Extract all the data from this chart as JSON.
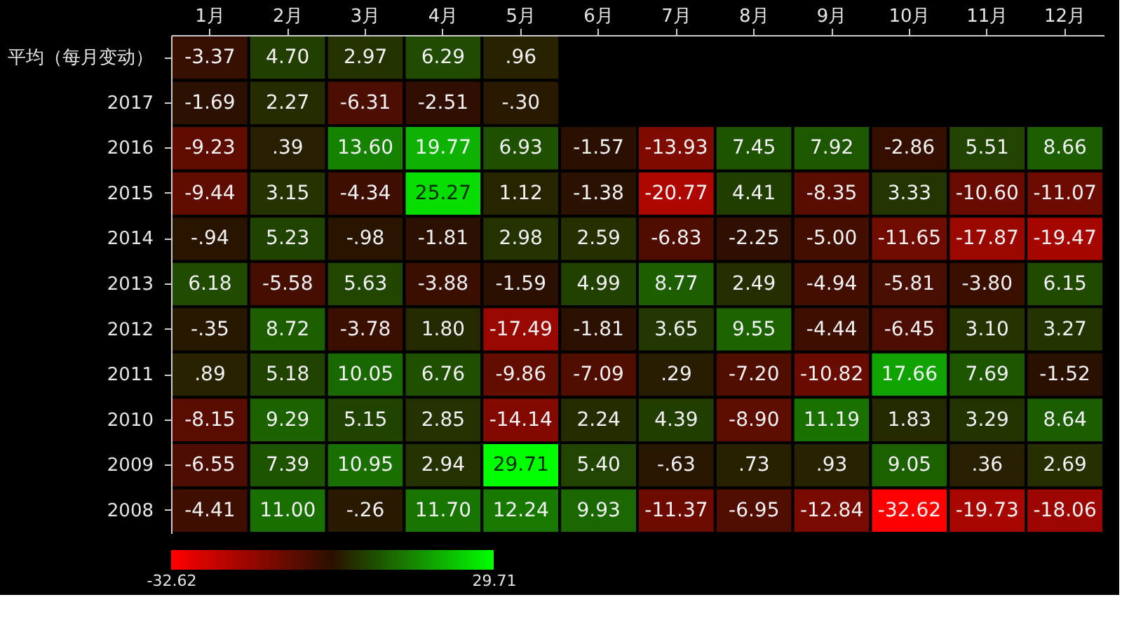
{
  "chart_data": {
    "type": "heatmap",
    "categories": [
      "1月",
      "2月",
      "3月",
      "4月",
      "5月",
      "6月",
      "7月",
      "8月",
      "9月",
      "10月",
      "11月",
      "12月"
    ],
    "y_categories": [
      "平均（每月变动）",
      "2017",
      "2016",
      "2015",
      "2014",
      "2013",
      "2012",
      "2011",
      "2010",
      "2009",
      "2008"
    ],
    "cells": [
      [
        -3.37,
        4.7,
        2.97,
        6.29,
        0.96,
        null,
        null,
        null,
        null,
        null,
        null,
        null
      ],
      [
        -1.69,
        2.27,
        -6.31,
        -2.51,
        -0.3,
        null,
        null,
        null,
        null,
        null,
        null,
        null
      ],
      [
        -9.23,
        0.39,
        13.6,
        19.77,
        6.93,
        -1.57,
        -13.93,
        7.45,
        7.92,
        -2.86,
        5.51,
        8.66
      ],
      [
        -9.44,
        3.15,
        -4.34,
        25.27,
        1.12,
        -1.38,
        -20.77,
        4.41,
        -8.35,
        3.33,
        -10.6,
        -11.07
      ],
      [
        -0.94,
        5.23,
        -0.98,
        -1.81,
        2.98,
        2.59,
        -6.83,
        -2.25,
        -5.0,
        -11.65,
        -17.87,
        -19.47
      ],
      [
        6.18,
        -5.58,
        5.63,
        -3.88,
        -1.59,
        4.99,
        8.77,
        2.49,
        -4.94,
        -5.81,
        -3.8,
        6.15
      ],
      [
        -0.35,
        8.72,
        -3.78,
        1.8,
        -17.49,
        -1.81,
        3.65,
        9.55,
        -4.44,
        -6.45,
        3.1,
        3.27
      ],
      [
        0.89,
        5.18,
        10.05,
        6.76,
        -9.86,
        -7.09,
        0.29,
        -7.2,
        -10.82,
        17.66,
        7.69,
        -1.52
      ],
      [
        -8.15,
        9.29,
        5.15,
        2.85,
        -14.14,
        2.24,
        4.39,
        -8.9,
        11.19,
        1.83,
        3.29,
        8.64
      ],
      [
        -6.55,
        7.39,
        10.95,
        2.94,
        29.71,
        5.4,
        -0.63,
        0.73,
        0.93,
        9.05,
        0.36,
        2.69
      ],
      [
        -4.41,
        11.0,
        -0.26,
        11.7,
        12.24,
        9.93,
        -11.37,
        -6.95,
        -12.84,
        -32.62,
        -19.73,
        -18.06
      ]
    ],
    "cell_labels": [
      [
        "-3.37",
        "4.70",
        "2.97",
        "6.29",
        ".96",
        null,
        null,
        null,
        null,
        null,
        null,
        null
      ],
      [
        "-1.69",
        "2.27",
        "-6.31",
        "-2.51",
        "-.30",
        null,
        null,
        null,
        null,
        null,
        null,
        null
      ],
      [
        "-9.23",
        ".39",
        "13.60",
        "19.77",
        "6.93",
        "-1.57",
        "-13.93",
        "7.45",
        "7.92",
        "-2.86",
        "5.51",
        "8.66"
      ],
      [
        "-9.44",
        "3.15",
        "-4.34",
        "25.27",
        "1.12",
        "-1.38",
        "-20.77",
        "4.41",
        "-8.35",
        "3.33",
        "-10.60",
        "-11.07"
      ],
      [
        "-.94",
        "5.23",
        "-.98",
        "-1.81",
        "2.98",
        "2.59",
        "-6.83",
        "-2.25",
        "-5.00",
        "-11.65",
        "-17.87",
        "-19.47"
      ],
      [
        "6.18",
        "-5.58",
        "5.63",
        "-3.88",
        "-1.59",
        "4.99",
        "8.77",
        "2.49",
        "-4.94",
        "-5.81",
        "-3.80",
        "6.15"
      ],
      [
        "-.35",
        "8.72",
        "-3.78",
        "1.80",
        "-17.49",
        "-1.81",
        "3.65",
        "9.55",
        "-4.44",
        "-6.45",
        "3.10",
        "3.27"
      ],
      [
        ".89",
        "5.18",
        "10.05",
        "6.76",
        "-9.86",
        "-7.09",
        ".29",
        "-7.20",
        "-10.82",
        "17.66",
        "7.69",
        "-1.52"
      ],
      [
        "-8.15",
        "9.29",
        "5.15",
        "2.85",
        "-14.14",
        "2.24",
        "4.39",
        "-8.90",
        "11.19",
        "1.83",
        "3.29",
        "8.64"
      ],
      [
        "-6.55",
        "7.39",
        "10.95",
        "2.94",
        "29.71",
        "5.40",
        "-.63",
        ".73",
        ".93",
        "9.05",
        ".36",
        "2.69"
      ],
      [
        "-4.41",
        "11.00",
        "-.26",
        "11.70",
        "12.24",
        "9.93",
        "-11.37",
        "-6.95",
        "-12.84",
        "-32.62",
        "-19.73",
        "-18.06"
      ]
    ],
    "clim": [
      -32.62,
      29.71
    ],
    "cticks": [
      -32.62,
      29.71
    ],
    "grid": false
  }
}
